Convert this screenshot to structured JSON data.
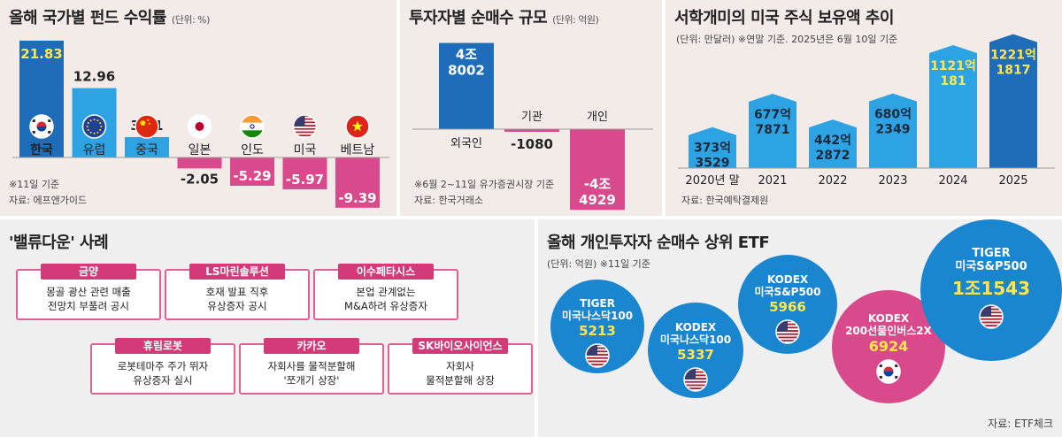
{
  "panel1": {
    "title": "올해 국가별 펀드 수익률",
    "unit": "(단위: %)",
    "note1": "※11일 기준",
    "note2": "자료: 에프앤가이드"
  },
  "panel2": {
    "title": "투자자별 순매수 규모",
    "unit": "(단위: 억원)",
    "note1": "※6월 2~11일 유가증권시장 기준",
    "note2": "자료: 한국거래소"
  },
  "panel3": {
    "title": "서학개미의 미국 주식 보유액 추이",
    "unit_note": "(단위: 만달러) ※연말 기준. 2025년은 6월 10일 기준",
    "source": "자료: 한국예탁결제원"
  },
  "panel4": {
    "title": "'밸류다운' 사례",
    "cases": [
      {
        "company": "금양",
        "desc": "몽골 광산 관련 매출\n전망치 부풀려 공시"
      },
      {
        "company": "LS마린솔루션",
        "desc": "호재 발표 직후\n유상증자 공시"
      },
      {
        "company": "이수페타시스",
        "desc": "본업 관계없는\nM&A하려 유상증자"
      },
      {
        "company": "휴림로봇",
        "desc": "로봇테마주 주가 뛰자\n유상증자 실시"
      },
      {
        "company": "카카오",
        "desc": "자회사를 물적분할해\n'쪼개기 상장'"
      },
      {
        "company": "SK바이오사이언스",
        "desc": "자회사\n물적분할해 상장"
      }
    ]
  },
  "panel5": {
    "title": "올해 개인투자자 순매수 상위 ETF",
    "unit": "(단위: 억원) ※11일 기준",
    "source": "자료: ETF체크",
    "etfs": [
      {
        "name": "TIGER\n미국나스닥100",
        "value": "5213",
        "flag": "us"
      },
      {
        "name": "KODEX\n미국나스닥100",
        "value": "5337",
        "flag": "us"
      },
      {
        "name": "KODEX\n미국S&P500",
        "value": "5966",
        "flag": "us"
      },
      {
        "name": "KODEX\n200선물인버스2X",
        "value": "6924",
        "flag": "kr"
      },
      {
        "name": "TIGER\n미국S&P500",
        "value": "1조1543",
        "flag": "us"
      }
    ]
  },
  "colors": {
    "blue_dark": "#1f6db8",
    "blue_light": "#2ea3e4",
    "pink": "#d94a8c",
    "bubble_blue": "#1b86d0",
    "bubble_pink": "#d94a8c"
  },
  "chart_data": [
    {
      "type": "bar",
      "title": "올해 국가별 펀드 수익률",
      "ylabel": "%",
      "categories": [
        "한국",
        "유럽",
        "중국",
        "일본",
        "인도",
        "미국",
        "베트남"
      ],
      "values": [
        21.83,
        12.96,
        3.81,
        -2.05,
        -5.29,
        -5.97,
        -9.39
      ],
      "labels": [
        "21.83",
        "12.96",
        "3.81",
        "-2.05",
        "-5.29",
        "-5.97",
        "-9.39"
      ],
      "flags": [
        "kr",
        "eu",
        "cn",
        "jp",
        "in",
        "us",
        "vn"
      ]
    },
    {
      "type": "bar",
      "title": "투자자별 순매수 규모",
      "ylabel": "억원",
      "categories": [
        "외국인",
        "기관",
        "개인"
      ],
      "values": [
        48002,
        -1080,
        -44929
      ],
      "labels": [
        "4조\n8002",
        "-1080",
        "-4조\n4929"
      ]
    },
    {
      "type": "bar",
      "title": "서학개미의 미국 주식 보유액 추이",
      "ylabel": "만달러",
      "categories": [
        "2020년 말",
        "2021",
        "2022",
        "2023",
        "2024",
        "2025"
      ],
      "values": [
        3733529,
        6777871,
        4422872,
        6802349,
        11210181,
        12211817
      ],
      "labels": [
        "373억\n3529",
        "677억\n7871",
        "442억\n2872",
        "680억\n2349",
        "1121억\n181",
        "1221억\n1817"
      ]
    }
  ]
}
